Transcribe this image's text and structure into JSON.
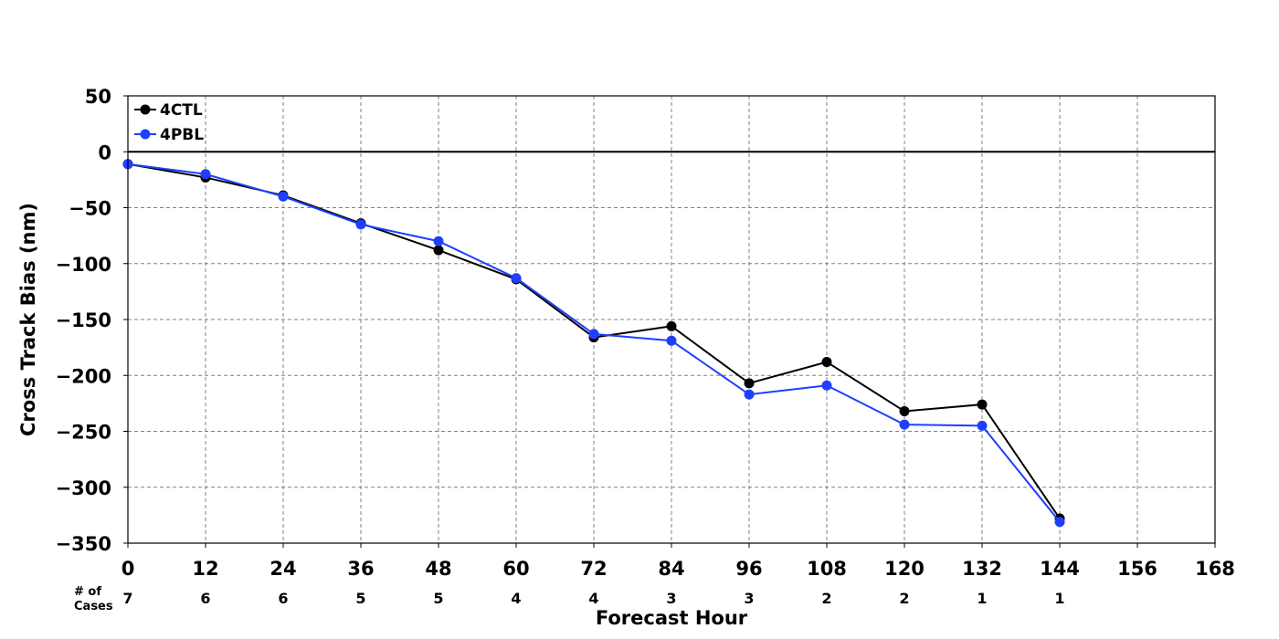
{
  "chart_data": {
    "type": "line",
    "title": "",
    "xlabel": "Forecast Hour",
    "ylabel": "Cross Track Bias (nm)",
    "xlim": [
      0,
      168
    ],
    "ylim": [
      -350,
      50
    ],
    "x_ticks": [
      0,
      12,
      24,
      36,
      48,
      60,
      72,
      84,
      96,
      108,
      120,
      132,
      144,
      156,
      168
    ],
    "y_ticks": [
      50,
      0,
      -50,
      -100,
      -150,
      -200,
      -250,
      -300,
      -350
    ],
    "grid": true,
    "grid_style": "dashed",
    "zero_line": true,
    "legend_position": "top-left",
    "x": [
      0,
      12,
      24,
      36,
      48,
      60,
      72,
      84,
      96,
      108,
      120,
      132,
      144
    ],
    "series": [
      {
        "name": "4CTL",
        "color": "#000000",
        "values": [
          -11,
          -23,
          -39,
          -64,
          -88,
          -114,
          -166,
          -156,
          -207,
          -188,
          -232,
          -226,
          -328
        ]
      },
      {
        "name": "4PBL",
        "color": "#1f3fff",
        "values": [
          -11,
          -20,
          -40,
          -65,
          -80,
          -113,
          -163,
          -169,
          -217,
          -209,
          -244,
          -245,
          -331
        ]
      }
    ],
    "cases": {
      "title_line1": "# of",
      "title_line2": "Cases",
      "x": [
        0,
        12,
        24,
        36,
        48,
        60,
        72,
        84,
        96,
        108,
        120,
        132,
        144
      ],
      "counts": [
        "7",
        "6",
        "6",
        "5",
        "5",
        "4",
        "4",
        "3",
        "3",
        "2",
        "2",
        "1",
        "1"
      ]
    }
  }
}
